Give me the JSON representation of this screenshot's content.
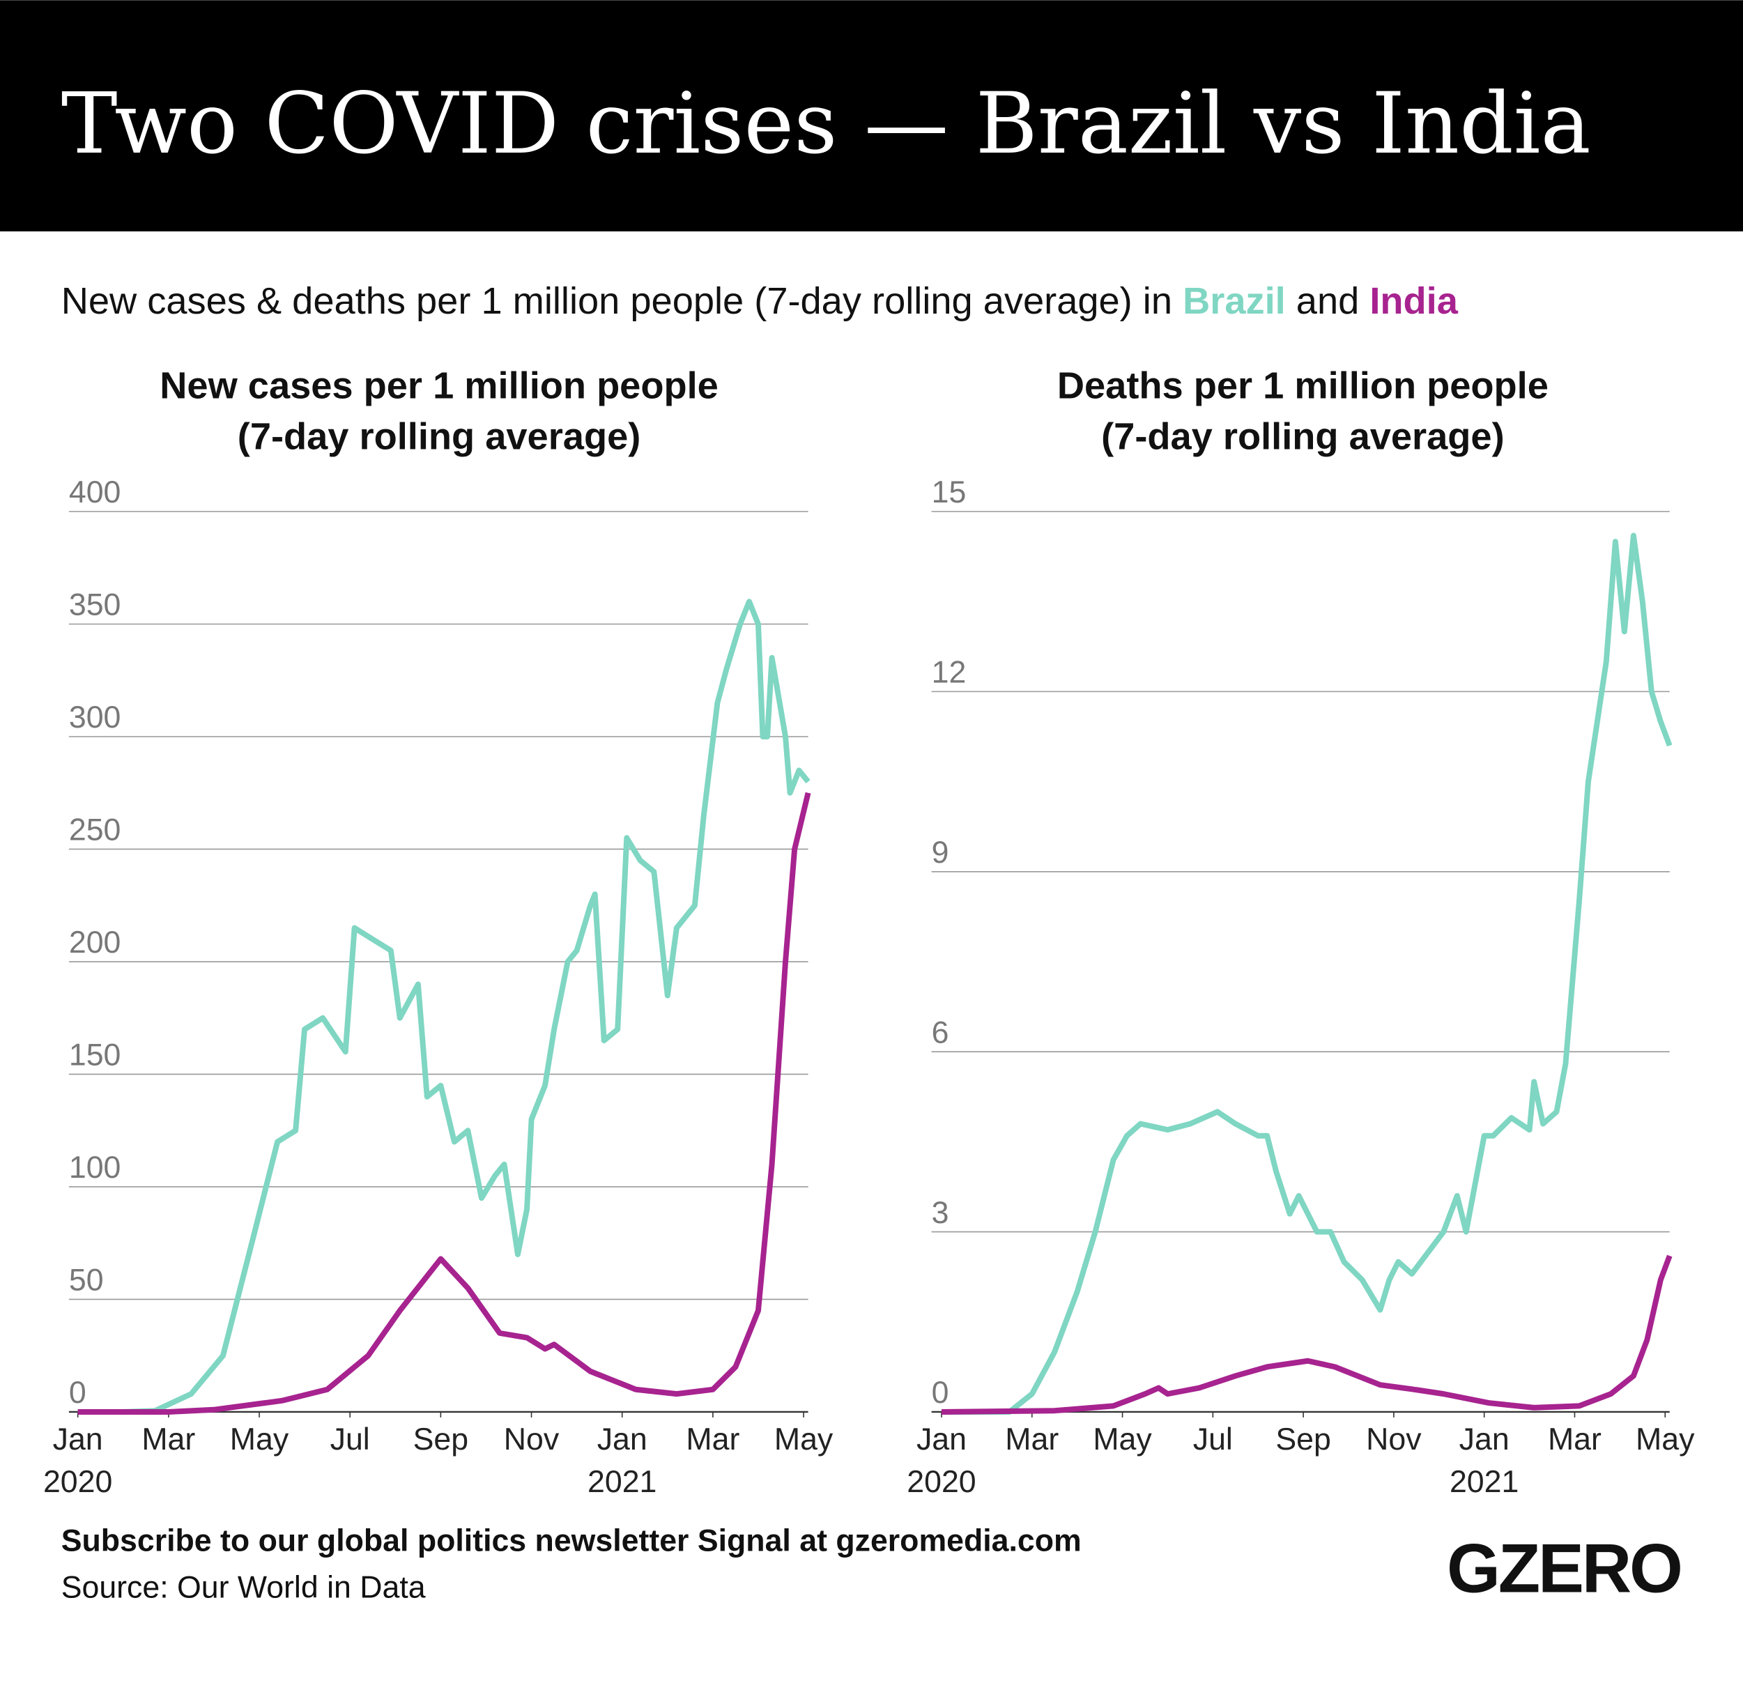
{
  "headline": "Two COVID crises — Brazil vs India",
  "subtitle": {
    "lead": "New cases & deaths per 1 million people (7-day rolling average) in",
    "join": "and"
  },
  "footer": {
    "cta": "Subscribe to our global politics newsletter Signal at gzeromedia.com",
    "source": "Source: Our World in Data",
    "logo": "GZERO"
  },
  "chart_data": [
    {
      "type": "line",
      "title": "New cases per 1 million people\n(7-day rolling average)",
      "grid": true,
      "xlim": [
        0,
        16.1
      ],
      "xticks": [
        {
          "value": 0,
          "label": "Jan 2020"
        },
        {
          "value": 2,
          "label": "Mar"
        },
        {
          "value": 4,
          "label": "May"
        },
        {
          "value": 6,
          "label": "Jul"
        },
        {
          "value": 8,
          "label": "Sep"
        },
        {
          "value": 10,
          "label": "Nov"
        },
        {
          "value": 12,
          "label": "Jan 2021"
        },
        {
          "value": 14,
          "label": "Mar"
        },
        {
          "value": 16,
          "label": "May"
        }
      ],
      "ylim": [
        0,
        400
      ],
      "yticks": [
        0,
        50,
        100,
        150,
        200,
        250,
        300,
        350,
        400
      ],
      "series": [
        {
          "name": "Brazil",
          "color": "#7fd6c2",
          "x": [
            0,
            1,
            1.7,
            2.5,
            3.2,
            3.9,
            4.4,
            4.8,
            5.0,
            5.4,
            5.9,
            6.1,
            6.5,
            6.9,
            7.1,
            7.5,
            7.7,
            8.0,
            8.3,
            8.6,
            8.9,
            9.2,
            9.4,
            9.7,
            9.9,
            10.0,
            10.3,
            10.5,
            10.8,
            11.0,
            11.3,
            11.4,
            11.6,
            11.9,
            12.1,
            12.4,
            12.7,
            13.0,
            13.2,
            13.6,
            13.8,
            14.1,
            14.3,
            14.6,
            14.8,
            15.0,
            15.1,
            15.2,
            15.3,
            15.6,
            15.7,
            15.9,
            16.1
          ],
          "values": [
            0,
            0,
            0.5,
            8,
            25,
            80,
            120,
            125,
            170,
            175,
            160,
            215,
            210,
            205,
            175,
            190,
            140,
            145,
            120,
            125,
            95,
            105,
            110,
            70,
            90,
            130,
            145,
            170,
            200,
            205,
            225,
            230,
            165,
            170,
            255,
            245,
            240,
            185,
            215,
            225,
            265,
            315,
            330,
            350,
            360,
            350,
            300,
            300,
            335,
            300,
            275,
            285,
            280
          ]
        },
        {
          "name": "India",
          "color": "#a7238f",
          "x": [
            0,
            2,
            3,
            4.5,
            5.5,
            6.4,
            7.1,
            8.0,
            8.6,
            9.3,
            9.9,
            10.3,
            10.5,
            11.3,
            12.3,
            13.2,
            14.0,
            14.5,
            15.0,
            15.3,
            15.6,
            15.8,
            16.1
          ],
          "values": [
            0,
            0,
            1,
            5,
            10,
            25,
            45,
            68,
            55,
            35,
            33,
            28,
            30,
            18,
            10,
            8,
            10,
            20,
            45,
            110,
            200,
            250,
            275
          ]
        }
      ]
    },
    {
      "type": "line",
      "title": "Deaths per 1 million people\n(7-day rolling average)",
      "grid": true,
      "xlim": [
        0,
        16.1
      ],
      "xticks": [
        {
          "value": 0,
          "label": "Jan 2020"
        },
        {
          "value": 2,
          "label": "Mar"
        },
        {
          "value": 4,
          "label": "May"
        },
        {
          "value": 6,
          "label": "Jul"
        },
        {
          "value": 8,
          "label": "Sep"
        },
        {
          "value": 10,
          "label": "Nov"
        },
        {
          "value": 12,
          "label": "Jan 2021"
        },
        {
          "value": 14,
          "label": "Mar"
        },
        {
          "value": 16,
          "label": "May"
        }
      ],
      "ylim": [
        0,
        15
      ],
      "yticks": [
        0,
        3,
        6,
        9,
        12,
        15
      ],
      "series": [
        {
          "name": "Brazil",
          "color": "#7fd6c2",
          "x": [
            0,
            1.5,
            2.0,
            2.5,
            3.0,
            3.4,
            3.8,
            4.1,
            4.4,
            5.0,
            5.5,
            6.1,
            6.5,
            7.0,
            7.2,
            7.4,
            7.7,
            7.9,
            8.3,
            8.6,
            8.9,
            9.3,
            9.7,
            9.9,
            10.1,
            10.4,
            10.8,
            11.1,
            11.4,
            11.6,
            12.0,
            12.2,
            12.6,
            13.0,
            13.1,
            13.3,
            13.6,
            13.8,
            14.1,
            14.3,
            14.7,
            14.9,
            15.1,
            15.3,
            15.5,
            15.7,
            15.9,
            16.1
          ],
          "values": [
            0,
            0,
            0.3,
            1,
            2,
            3,
            4.2,
            4.6,
            4.8,
            4.7,
            4.8,
            5.0,
            4.8,
            4.6,
            4.6,
            4.0,
            3.3,
            3.6,
            3.0,
            3.0,
            2.5,
            2.2,
            1.7,
            2.2,
            2.5,
            2.3,
            2.7,
            3.0,
            3.6,
            3.0,
            4.6,
            4.6,
            4.9,
            4.7,
            5.5,
            4.8,
            5.0,
            5.8,
            8.5,
            10.5,
            12.5,
            14.5,
            13,
            14.6,
            13.5,
            12,
            11.5,
            11.1
          ]
        },
        {
          "name": "India",
          "color": "#a7238f",
          "x": [
            0,
            2.5,
            3.8,
            4.5,
            4.8,
            5.0,
            5.7,
            6.5,
            7.2,
            8.1,
            8.7,
            9.7,
            10.4,
            11.1,
            12.1,
            13.1,
            14.1,
            14.8,
            15.3,
            15.6,
            15.9,
            16.1
          ],
          "values": [
            0,
            0.02,
            0.1,
            0.3,
            0.4,
            0.3,
            0.4,
            0.6,
            0.75,
            0.85,
            0.75,
            0.45,
            0.38,
            0.3,
            0.15,
            0.07,
            0.1,
            0.3,
            0.6,
            1.2,
            2.2,
            2.6
          ]
        }
      ]
    }
  ]
}
